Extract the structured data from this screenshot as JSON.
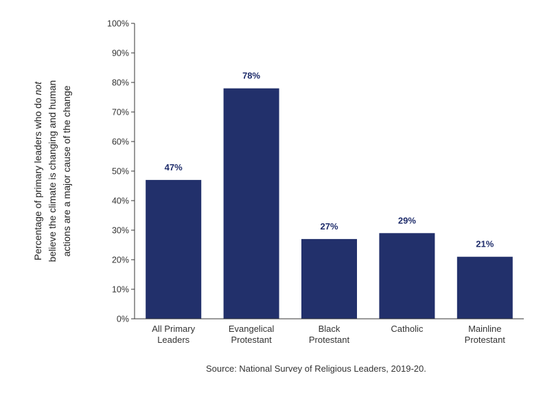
{
  "chart_data": {
    "type": "bar",
    "categories": [
      [
        "All Primary",
        "Leaders"
      ],
      [
        "Evangelical",
        "Protestant"
      ],
      [
        "Black",
        "Protestant"
      ],
      [
        "Catholic"
      ],
      [
        "Mainline",
        "Protestant"
      ]
    ],
    "values": [
      47,
      78,
      27,
      29,
      21
    ],
    "data_labels": [
      "47%",
      "78%",
      "27%",
      "29%",
      "21%"
    ],
    "ylabel_lines": [
      [
        "Percentage of primary leaders who do ",
        {
          "italic": "not"
        }
      ],
      [
        "believe the climate is changing and human"
      ],
      [
        "actions are a major cause of the change"
      ]
    ],
    "ylim": [
      0,
      100
    ],
    "yticks": [
      "0%",
      "10%",
      "20%",
      "30%",
      "40%",
      "50%",
      "60%",
      "70%",
      "80%",
      "90%",
      "100%"
    ],
    "bar_color": "#22306b",
    "label_color": "#1f2d6b",
    "grid": false
  },
  "source": "Source: National Survey of Religious Leaders, 2019-20."
}
